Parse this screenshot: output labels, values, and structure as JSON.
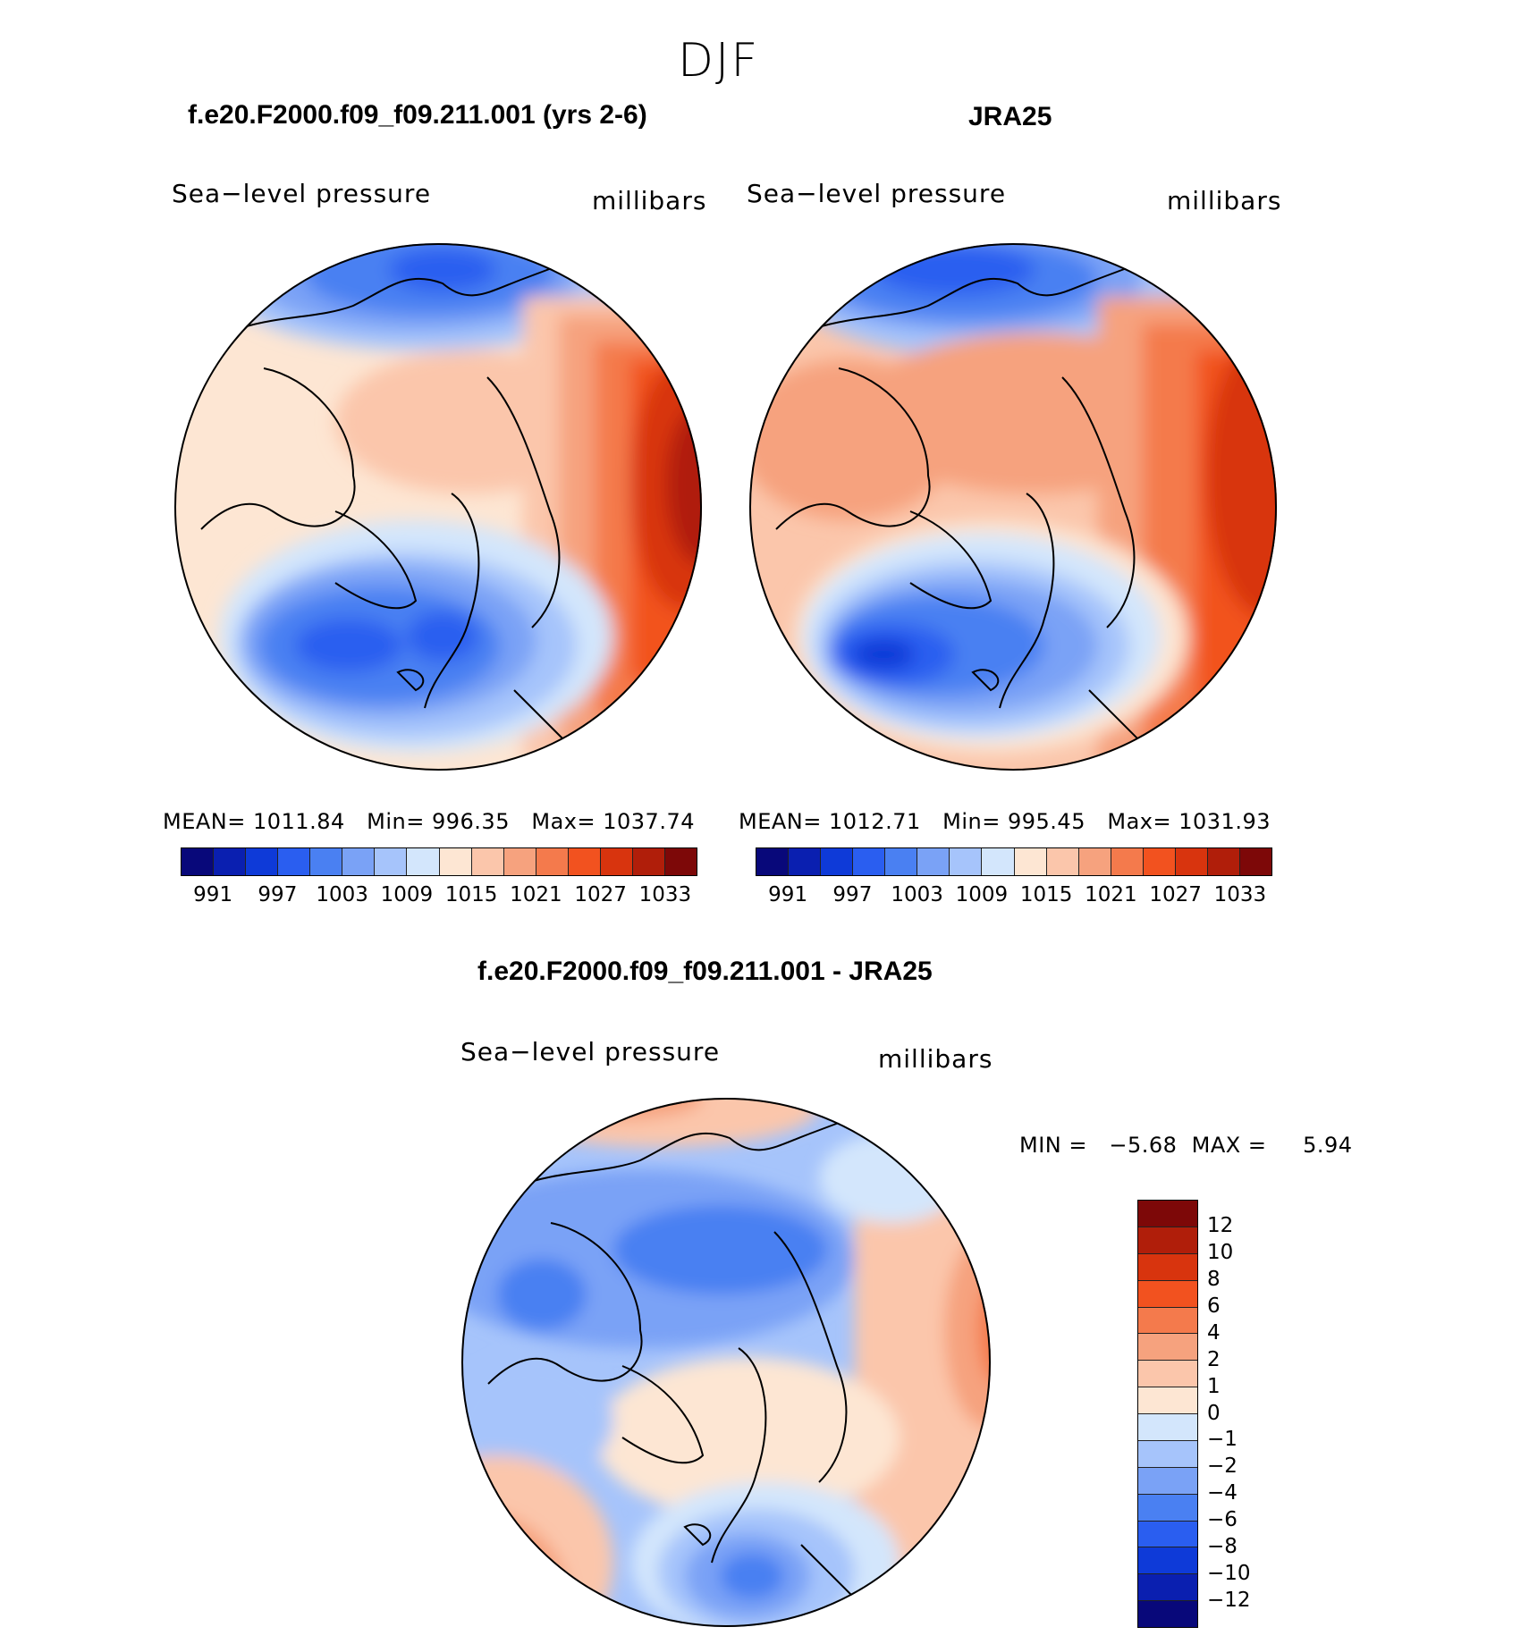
{
  "title": "DJF",
  "panel_left": {
    "title": "f.e20.F2000.f09_f09.211.001 (yrs 2-6)",
    "variable": "Sea−level pressure",
    "units": "millibars",
    "stats": {
      "mean_label": "MEAN=",
      "mean": "1011.84",
      "min_label": "Min=",
      "min": "996.35",
      "max_label": "Max=",
      "max": "1037.74"
    }
  },
  "panel_right": {
    "title": "JRA25",
    "variable": "Sea−level pressure",
    "units": "millibars",
    "stats": {
      "mean_label": "MEAN=",
      "mean": "1012.71",
      "min_label": "Min=",
      "min": "995.45",
      "max_label": "Max=",
      "max": "1031.93"
    }
  },
  "panel_diff": {
    "title": "f.e20.F2000.f09_f09.211.001 - JRA25",
    "variable": "Sea−level pressure",
    "units": "millibars",
    "minmax": "MIN =   −5.68  MAX =     5.94"
  },
  "colorbar_abs": {
    "colors": [
      "#08087a",
      "#0a1fb0",
      "#0e3ad8",
      "#2a5ef0",
      "#4a80f2",
      "#7aa2f6",
      "#a6c4fb",
      "#d3e6fc",
      "#fde6d3",
      "#fbc6ab",
      "#f6a27e",
      "#f47a4c",
      "#f2521f",
      "#d8340e",
      "#b01e0a",
      "#7d0808"
    ],
    "labels": [
      "991",
      "997",
      "1003",
      "1009",
      "1015",
      "1021",
      "1027",
      "1033"
    ]
  },
  "colorbar_diff": {
    "colors": [
      "#7d0808",
      "#b01e0a",
      "#d8340e",
      "#f2521f",
      "#f47a4c",
      "#f6a27e",
      "#fbc6ab",
      "#fde6d3",
      "#d3e6fc",
      "#a6c4fb",
      "#7aa2f6",
      "#4a80f2",
      "#2a5ef0",
      "#0e3ad8",
      "#0a1fb0",
      "#08087a"
    ],
    "labels": [
      "12",
      "10",
      "8",
      "6",
      "4",
      "2",
      "1",
      "0",
      "−1",
      "−2",
      "−4",
      "−6",
      "−8",
      "−10",
      "−12"
    ]
  }
}
